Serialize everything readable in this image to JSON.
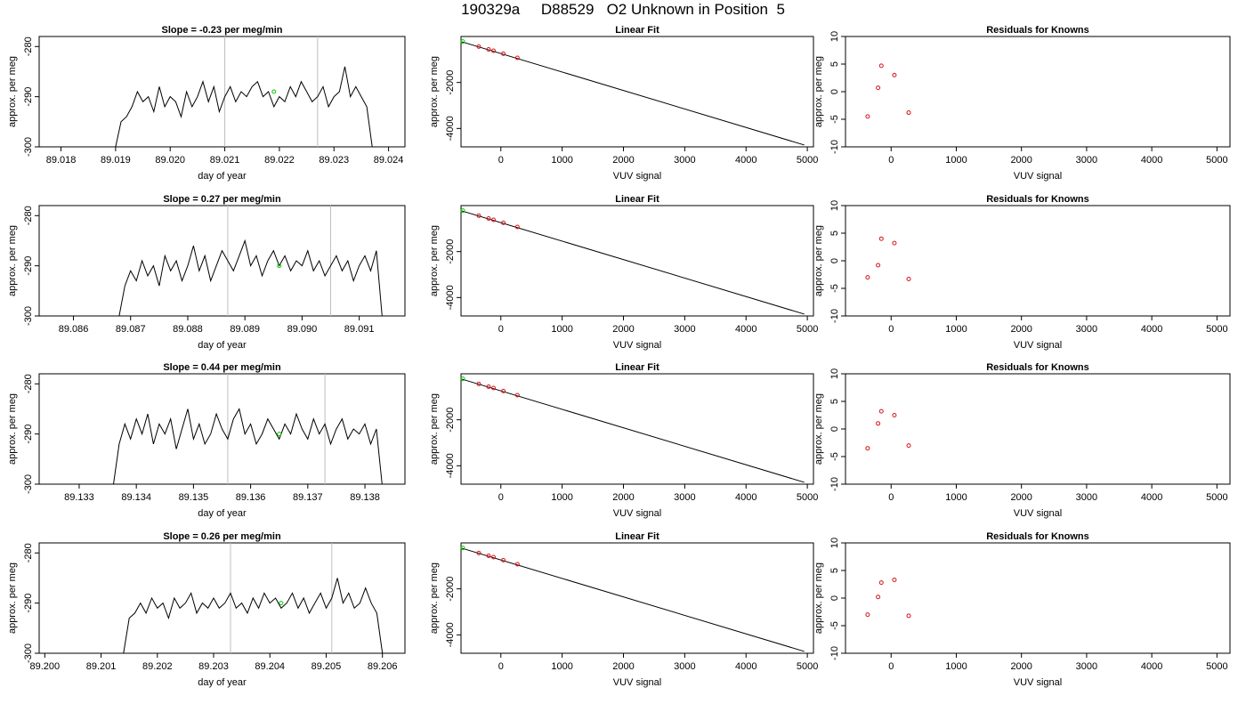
{
  "title": "190329a     D88529   O2 Unknown in Position  5",
  "colors": {
    "trace": "#000000",
    "grid_line": "#bebebe",
    "unknown_point": "#00cc00",
    "known_point": "#d4141a"
  },
  "chart_data": [
    {
      "type": "line",
      "panel": "trace-1",
      "title": "Slope =  -0.23  per meg/min",
      "xlabel": "day of year",
      "ylabel": "approx. per meg",
      "xlim": [
        89.0176,
        89.0243
      ],
      "ylim": [
        -300,
        -278
      ],
      "xticks": [
        "89.018",
        "89.019",
        "89.020",
        "89.021",
        "89.022",
        "89.023",
        "89.024"
      ],
      "yticks": [
        "-300",
        "-290",
        "-280"
      ],
      "x": [
        89.019,
        89.0191,
        89.0192,
        89.0193,
        89.0194,
        89.0195,
        89.0196,
        89.0197,
        89.0198,
        89.0199,
        89.02,
        89.0201,
        89.0202,
        89.0203,
        89.0204,
        89.0205,
        89.0206,
        89.0207,
        89.0208,
        89.0209,
        89.021,
        89.0211,
        89.0212,
        89.0213,
        89.0214,
        89.0215,
        89.0216,
        89.0217,
        89.0218,
        89.0219,
        89.022,
        89.0221,
        89.0222,
        89.0223,
        89.0224,
        89.0225,
        89.0226,
        89.0227,
        89.0228,
        89.0229,
        89.023,
        89.0231,
        89.0232,
        89.0233,
        89.0234,
        89.0235,
        89.0236,
        89.0237
      ],
      "y": [
        -300,
        -295,
        -294,
        -292,
        -289,
        -291,
        -290,
        -293,
        -288,
        -292,
        -290,
        -291,
        -294,
        -289,
        -292,
        -290,
        -287,
        -291,
        -288,
        -293,
        -290,
        -288,
        -291,
        -289,
        -290,
        -288,
        -287,
        -290,
        -289,
        -292,
        -290,
        -291,
        -288,
        -290,
        -287,
        -289,
        -291,
        -290,
        -288,
        -292,
        -290,
        -289,
        -284,
        -290,
        -288,
        -290,
        -292,
        -300
      ],
      "vlines": [
        89.021,
        89.0227
      ],
      "unknown_point": {
        "x": 89.0219,
        "y": -289
      }
    },
    {
      "type": "scatter",
      "panel": "fit-1",
      "title": "Linear Fit",
      "xlabel": "VUV signal",
      "ylabel": "approx. per meg",
      "xlim": [
        -650,
        5100
      ],
      "ylim": [
        -4800,
        0
      ],
      "xticks": [
        "0",
        "1000",
        "2000",
        "3000",
        "4000",
        "5000"
      ],
      "yticks": [
        "-4000",
        "-2000"
      ],
      "line": {
        "x": [
          -650,
          4950
        ],
        "y": [
          -220,
          -4720
        ]
      },
      "knowns": [
        {
          "x": -360,
          "y": -440
        },
        {
          "x": -200,
          "y": -560
        },
        {
          "x": -120,
          "y": -620
        },
        {
          "x": 40,
          "y": -750
        },
        {
          "x": 270,
          "y": -930
        }
      ],
      "unknown": {
        "x": -620,
        "y": -220
      }
    },
    {
      "type": "scatter",
      "panel": "resid-1",
      "title": "Residuals for Knowns",
      "xlabel": "VUV signal",
      "ylabel": "approx. per meg",
      "xlim": [
        -700,
        5200
      ],
      "ylim": [
        -10,
        10
      ],
      "xticks": [
        "0",
        "1000",
        "2000",
        "3000",
        "4000",
        "5000"
      ],
      "yticks": [
        "-10",
        "-5",
        "0",
        "5",
        "10"
      ],
      "points": [
        {
          "x": -360,
          "y": -4.5
        },
        {
          "x": -200,
          "y": 0.7
        },
        {
          "x": -150,
          "y": 4.7
        },
        {
          "x": 50,
          "y": 3
        },
        {
          "x": 270,
          "y": -3.8
        }
      ]
    },
    {
      "type": "line",
      "panel": "trace-2",
      "title": "Slope =  0.27  per meg/min",
      "xlabel": "day of year",
      "ylabel": "approx. per meg",
      "xlim": [
        89.0854,
        89.0918
      ],
      "ylim": [
        -300,
        -278
      ],
      "xticks": [
        "89.086",
        "89.087",
        "89.088",
        "89.089",
        "89.090",
        "89.091"
      ],
      "yticks": [
        "-300",
        "-290",
        "-280"
      ],
      "x": [
        89.0868,
        89.0869,
        89.087,
        89.0871,
        89.0872,
        89.0873,
        89.0874,
        89.0875,
        89.0876,
        89.0877,
        89.0878,
        89.0879,
        89.088,
        89.0881,
        89.0882,
        89.0883,
        89.0884,
        89.0885,
        89.0886,
        89.0887,
        89.0888,
        89.0889,
        89.089,
        89.0891,
        89.0892,
        89.0893,
        89.0894,
        89.0895,
        89.0896,
        89.0897,
        89.0898,
        89.0899,
        89.09,
        89.0901,
        89.0902,
        89.0903,
        89.0904,
        89.0905,
        89.0906,
        89.0907,
        89.0908,
        89.0909,
        89.091,
        89.0911,
        89.0912,
        89.0913,
        89.0914
      ],
      "y": [
        -300,
        -294,
        -291,
        -293,
        -289,
        -292,
        -290,
        -294,
        -288,
        -291,
        -289,
        -293,
        -290,
        -286,
        -291,
        -288,
        -293,
        -290,
        -287,
        -289,
        -291,
        -288,
        -285,
        -290,
        -288,
        -292,
        -289,
        -287,
        -290,
        -288,
        -291,
        -289,
        -290,
        -287,
        -291,
        -289,
        -292,
        -290,
        -288,
        -291,
        -289,
        -293,
        -290,
        -288,
        -291,
        -287,
        -300
      ],
      "vlines": [
        89.0887,
        89.0905
      ],
      "unknown_point": {
        "x": 89.0896,
        "y": -290
      }
    },
    {
      "type": "scatter",
      "panel": "fit-2",
      "title": "Linear Fit",
      "xlabel": "VUV signal",
      "ylabel": "approx. per meg",
      "xlim": [
        -650,
        5100
      ],
      "ylim": [
        -4800,
        0
      ],
      "xticks": [
        "0",
        "1000",
        "2000",
        "3000",
        "4000",
        "5000"
      ],
      "yticks": [
        "-4000",
        "-2000"
      ],
      "line": {
        "x": [
          -650,
          4950
        ],
        "y": [
          -220,
          -4720
        ]
      },
      "knowns": [
        {
          "x": -360,
          "y": -440
        },
        {
          "x": -200,
          "y": -560
        },
        {
          "x": -120,
          "y": -620
        },
        {
          "x": 40,
          "y": -750
        },
        {
          "x": 270,
          "y": -930
        }
      ],
      "unknown": {
        "x": -620,
        "y": -220
      }
    },
    {
      "type": "scatter",
      "panel": "resid-2",
      "title": "Residuals for Knowns",
      "xlabel": "VUV signal",
      "ylabel": "approx. per meg",
      "xlim": [
        -700,
        5200
      ],
      "ylim": [
        -10,
        10
      ],
      "xticks": [
        "0",
        "1000",
        "2000",
        "3000",
        "4000",
        "5000"
      ],
      "yticks": [
        "-10",
        "-5",
        "0",
        "5",
        "10"
      ],
      "points": [
        {
          "x": -360,
          "y": -3
        },
        {
          "x": -200,
          "y": -0.8
        },
        {
          "x": -150,
          "y": 4
        },
        {
          "x": 50,
          "y": 3.2
        },
        {
          "x": 270,
          "y": -3.3
        }
      ]
    },
    {
      "type": "line",
      "panel": "trace-3",
      "title": "Slope =  0.44  per meg/min",
      "xlabel": "day of year",
      "ylabel": "approx. per meg",
      "xlim": [
        89.1323,
        89.1387
      ],
      "ylim": [
        -300,
        -278
      ],
      "xticks": [
        "89.133",
        "89.134",
        "89.135",
        "89.136",
        "89.137",
        "89.138"
      ],
      "yticks": [
        "-300",
        "-290",
        "-280"
      ],
      "x": [
        89.1336,
        89.1337,
        89.1338,
        89.1339,
        89.134,
        89.1341,
        89.1342,
        89.1343,
        89.1344,
        89.1345,
        89.1346,
        89.1347,
        89.1348,
        89.1349,
        89.135,
        89.1351,
        89.1352,
        89.1353,
        89.1354,
        89.1355,
        89.1356,
        89.1357,
        89.1358,
        89.1359,
        89.136,
        89.1361,
        89.1362,
        89.1363,
        89.1364,
        89.1365,
        89.1366,
        89.1367,
        89.1368,
        89.1369,
        89.137,
        89.1371,
        89.1372,
        89.1373,
        89.1374,
        89.1375,
        89.1376,
        89.1377,
        89.1378,
        89.1379,
        89.138,
        89.1381,
        89.1382,
        89.1383
      ],
      "y": [
        -300,
        -292,
        -288,
        -291,
        -287,
        -290,
        -286,
        -292,
        -288,
        -290,
        -287,
        -293,
        -289,
        -285,
        -291,
        -288,
        -292,
        -290,
        -286,
        -289,
        -291,
        -287,
        -285,
        -290,
        -288,
        -292,
        -290,
        -287,
        -289,
        -291,
        -288,
        -290,
        -286,
        -289,
        -291,
        -287,
        -290,
        -288,
        -292,
        -289,
        -287,
        -291,
        -289,
        -290,
        -288,
        -292,
        -289,
        -300
      ],
      "vlines": [
        89.1356,
        89.1373
      ],
      "unknown_point": {
        "x": 89.1365,
        "y": -290
      }
    },
    {
      "type": "scatter",
      "panel": "fit-3",
      "title": "Linear Fit",
      "xlabel": "VUV signal",
      "ylabel": "approx. per meg",
      "xlim": [
        -650,
        5100
      ],
      "ylim": [
        -4800,
        0
      ],
      "xticks": [
        "0",
        "1000",
        "2000",
        "3000",
        "4000",
        "5000"
      ],
      "yticks": [
        "-4000",
        "-2000"
      ],
      "line": {
        "x": [
          -650,
          4950
        ],
        "y": [
          -220,
          -4720
        ]
      },
      "knowns": [
        {
          "x": -360,
          "y": -440
        },
        {
          "x": -200,
          "y": -560
        },
        {
          "x": -120,
          "y": -620
        },
        {
          "x": 40,
          "y": -750
        },
        {
          "x": 270,
          "y": -930
        }
      ],
      "unknown": {
        "x": -620,
        "y": -220
      }
    },
    {
      "type": "scatter",
      "panel": "resid-3",
      "title": "Residuals for Knowns",
      "xlabel": "VUV signal",
      "ylabel": "approx. per meg",
      "xlim": [
        -700,
        5200
      ],
      "ylim": [
        -10,
        10
      ],
      "xticks": [
        "0",
        "1000",
        "2000",
        "3000",
        "4000",
        "5000"
      ],
      "yticks": [
        "-10",
        "-5",
        "0",
        "5",
        "10"
      ],
      "points": [
        {
          "x": -360,
          "y": -3.5
        },
        {
          "x": -200,
          "y": 1
        },
        {
          "x": -150,
          "y": 3.2
        },
        {
          "x": 50,
          "y": 2.5
        },
        {
          "x": 270,
          "y": -3
        }
      ]
    },
    {
      "type": "line",
      "panel": "trace-4",
      "title": "Slope =  0.26  per meg/min",
      "xlabel": "day of year",
      "ylabel": "approx. per meg",
      "xlim": [
        89.1999,
        89.2064
      ],
      "ylim": [
        -300,
        -278
      ],
      "xticks": [
        "89.200",
        "89.201",
        "89.202",
        "89.203",
        "89.204",
        "89.205",
        "89.206"
      ],
      "yticks": [
        "-300",
        "-290",
        "-280"
      ],
      "x": [
        89.2014,
        89.2015,
        89.2016,
        89.2017,
        89.2018,
        89.2019,
        89.202,
        89.2021,
        89.2022,
        89.2023,
        89.2024,
        89.2025,
        89.2026,
        89.2027,
        89.2028,
        89.2029,
        89.203,
        89.2031,
        89.2032,
        89.2033,
        89.2034,
        89.2035,
        89.2036,
        89.2037,
        89.2038,
        89.2039,
        89.204,
        89.2041,
        89.2042,
        89.2043,
        89.2044,
        89.2045,
        89.2046,
        89.2047,
        89.2048,
        89.2049,
        89.205,
        89.2051,
        89.2052,
        89.2053,
        89.2054,
        89.2055,
        89.2056,
        89.2057,
        89.2058,
        89.2059,
        89.206
      ],
      "y": [
        -300,
        -293,
        -292,
        -290,
        -292,
        -289,
        -291,
        -290,
        -293,
        -289,
        -291,
        -290,
        -288,
        -292,
        -290,
        -291,
        -289,
        -291,
        -290,
        -288,
        -291,
        -290,
        -292,
        -289,
        -291,
        -288,
        -290,
        -289,
        -291,
        -290,
        -288,
        -291,
        -289,
        -292,
        -290,
        -288,
        -291,
        -289,
        -285,
        -290,
        -288,
        -291,
        -290,
        -287,
        -290,
        -292,
        -300
      ],
      "vlines": [
        89.2033,
        89.2051
      ],
      "unknown_point": {
        "x": 89.2042,
        "y": -290
      }
    },
    {
      "type": "scatter",
      "panel": "fit-4",
      "title": "Linear Fit",
      "xlabel": "VUV signal",
      "ylabel": "approx. per meg",
      "xlim": [
        -650,
        5100
      ],
      "ylim": [
        -4800,
        0
      ],
      "xticks": [
        "0",
        "1000",
        "2000",
        "3000",
        "4000",
        "5000"
      ],
      "yticks": [
        "-4000",
        "-2000"
      ],
      "line": {
        "x": [
          -650,
          4950
        ],
        "y": [
          -220,
          -4720
        ]
      },
      "knowns": [
        {
          "x": -360,
          "y": -440
        },
        {
          "x": -200,
          "y": -560
        },
        {
          "x": -120,
          "y": -620
        },
        {
          "x": 40,
          "y": -750
        },
        {
          "x": 270,
          "y": -930
        }
      ],
      "unknown": {
        "x": -620,
        "y": -220
      }
    },
    {
      "type": "scatter",
      "panel": "resid-4",
      "title": "Residuals for Knowns",
      "xlabel": "VUV signal",
      "ylabel": "approx. per meg",
      "xlim": [
        -700,
        5200
      ],
      "ylim": [
        -10,
        10
      ],
      "xticks": [
        "0",
        "1000",
        "2000",
        "3000",
        "4000",
        "5000"
      ],
      "yticks": [
        "-10",
        "-5",
        "0",
        "5",
        "10"
      ],
      "points": [
        {
          "x": -360,
          "y": -3
        },
        {
          "x": -200,
          "y": 0.2
        },
        {
          "x": -150,
          "y": 2.8
        },
        {
          "x": 50,
          "y": 3.3
        },
        {
          "x": 270,
          "y": -3.2
        }
      ]
    }
  ]
}
